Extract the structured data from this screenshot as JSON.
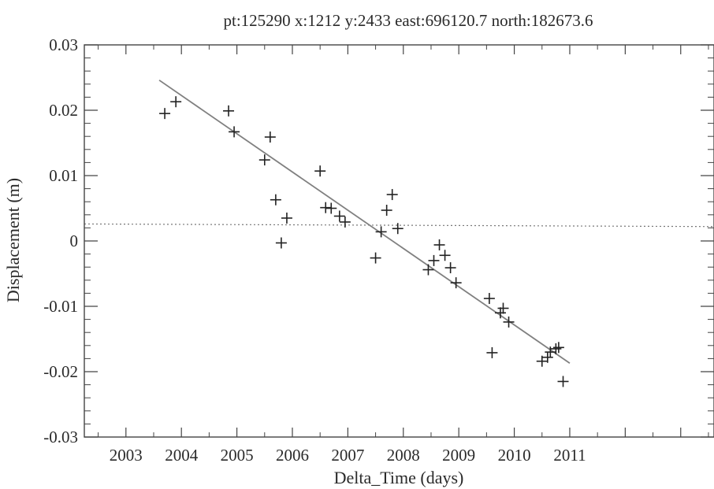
{
  "chart_data": {
    "type": "scatter",
    "title": "pt:125290  x:1212  y:2433  east:696120.7  north:182673.6",
    "xlabel": "Delta_Time (days)",
    "ylabel": "Displacement (m)",
    "xlim": [
      2002.25,
      2013.6
    ],
    "ylim": [
      -0.03,
      0.03
    ],
    "x_ticks": [
      2003,
      2004,
      2005,
      2006,
      2007,
      2008,
      2009,
      2010,
      2011
    ],
    "x_tick_labels": [
      "2003",
      "2004",
      "2005",
      "2006",
      "2007",
      "2008",
      "2009",
      "2010",
      "2011"
    ],
    "y_ticks": [
      -0.03,
      -0.02,
      -0.01,
      0,
      0.01,
      0.02,
      0.03
    ],
    "y_tick_labels": [
      "-0.03",
      "-0.02",
      "-0.01",
      "0",
      "0.01",
      "0.02",
      "0.03"
    ],
    "grid": false,
    "legend": "none",
    "marker": "plus",
    "reference_line": {
      "style": "dotted",
      "y_start": 0.0026,
      "y_end": 0.0022
    },
    "fit_line": {
      "style": "solid",
      "x_start": 2003.6,
      "y_start": 0.0246,
      "x_end": 2011.0,
      "y_end": -0.0187
    },
    "points": [
      {
        "x": 2003.7,
        "y": 0.0195
      },
      {
        "x": 2003.9,
        "y": 0.0213
      },
      {
        "x": 2004.85,
        "y": 0.0199
      },
      {
        "x": 2004.95,
        "y": 0.0167
      },
      {
        "x": 2005.5,
        "y": 0.0124
      },
      {
        "x": 2005.6,
        "y": 0.0159
      },
      {
        "x": 2005.7,
        "y": 0.0063
      },
      {
        "x": 2005.8,
        "y": -0.0003
      },
      {
        "x": 2005.9,
        "y": 0.0035
      },
      {
        "x": 2006.5,
        "y": 0.0107
      },
      {
        "x": 2006.6,
        "y": 0.0051
      },
      {
        "x": 2006.7,
        "y": 0.005
      },
      {
        "x": 2006.85,
        "y": 0.0038
      },
      {
        "x": 2006.95,
        "y": 0.0029
      },
      {
        "x": 2007.5,
        "y": -0.0026
      },
      {
        "x": 2007.6,
        "y": 0.0014
      },
      {
        "x": 2007.7,
        "y": 0.0047
      },
      {
        "x": 2007.8,
        "y": 0.0071
      },
      {
        "x": 2007.9,
        "y": 0.0019
      },
      {
        "x": 2008.45,
        "y": -0.0044
      },
      {
        "x": 2008.55,
        "y": -0.003
      },
      {
        "x": 2008.65,
        "y": -0.0006
      },
      {
        "x": 2008.75,
        "y": -0.0022
      },
      {
        "x": 2008.85,
        "y": -0.0041
      },
      {
        "x": 2008.95,
        "y": -0.0064
      },
      {
        "x": 2009.55,
        "y": -0.0088
      },
      {
        "x": 2009.6,
        "y": -0.0171
      },
      {
        "x": 2009.75,
        "y": -0.011
      },
      {
        "x": 2009.8,
        "y": -0.0103
      },
      {
        "x": 2009.9,
        "y": -0.0124
      },
      {
        "x": 2010.5,
        "y": -0.0184
      },
      {
        "x": 2010.6,
        "y": -0.0178
      },
      {
        "x": 2010.65,
        "y": -0.017
      },
      {
        "x": 2010.75,
        "y": -0.0165
      },
      {
        "x": 2010.8,
        "y": -0.0163
      },
      {
        "x": 2010.88,
        "y": -0.0215
      }
    ]
  }
}
